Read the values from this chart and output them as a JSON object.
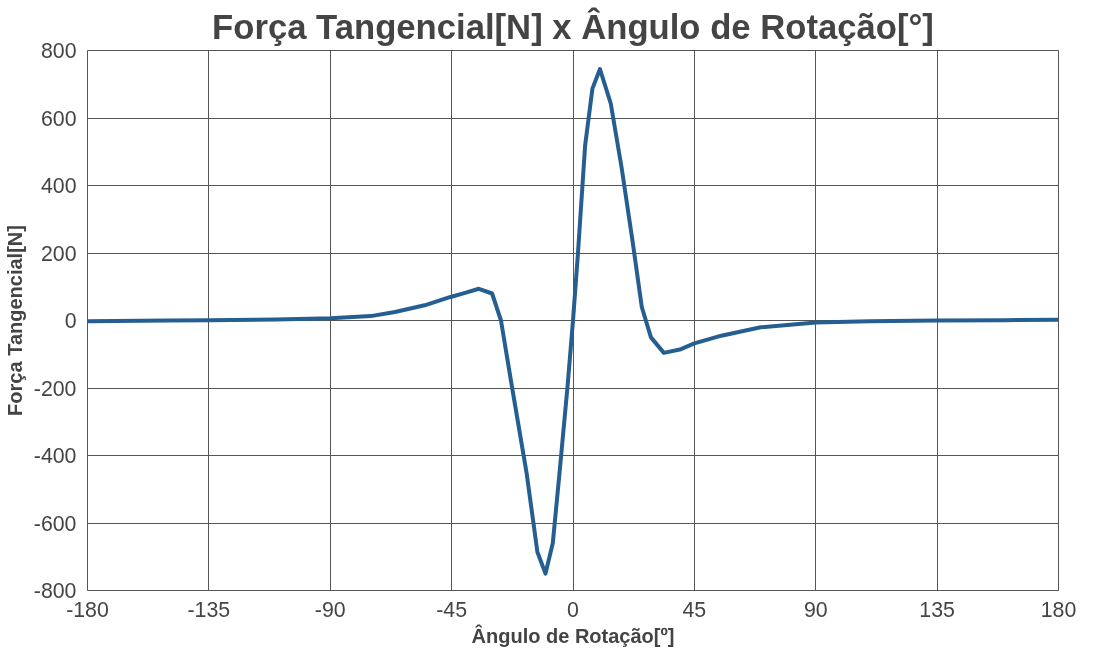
{
  "chart_data": {
    "type": "line",
    "title": "Força Tangencial[N] x Ângulo de Rotação[°]",
    "xlabel": "Ângulo de Rotação[º]",
    "ylabel": "Força Tangencial[N]",
    "x": [
      -180,
      -150,
      -135,
      -110,
      -90,
      -75,
      -66,
      -55,
      -45.7,
      -40,
      -34.9,
      -30,
      -26.7,
      -22.7,
      -17.2,
      -13.2,
      -10.2,
      -7.5,
      -5,
      -2,
      0,
      1.8,
      4.5,
      7.2,
      10,
      14,
      18,
      22.1,
      25.5,
      28.9,
      33.7,
      40,
      45,
      55,
      69.6,
      90,
      110,
      135,
      160,
      180
    ],
    "series": [
      {
        "color": "#255e91",
        "values": [
          -2,
          0,
          1,
          3,
          7,
          13,
          25,
          45,
          69,
          82,
          94,
          80,
          0,
          -193,
          -452,
          -686,
          -750,
          -660,
          -452,
          -193,
          0,
          195,
          519,
          687,
          745,
          643,
          454,
          234,
          40,
          -50,
          -96,
          -85,
          -68,
          -45,
          -20,
          -6,
          -2,
          0,
          1,
          2
        ]
      }
    ],
    "xlim": [
      -180,
      180
    ],
    "ylim": [
      -800,
      800
    ],
    "xticks": [
      -180,
      -135,
      -90,
      -45,
      0,
      45,
      90,
      135,
      180
    ],
    "yticks": [
      -800,
      -600,
      -400,
      -200,
      0,
      200,
      400,
      600,
      800
    ],
    "grid": true,
    "marker": "none",
    "line_style": "solid"
  }
}
